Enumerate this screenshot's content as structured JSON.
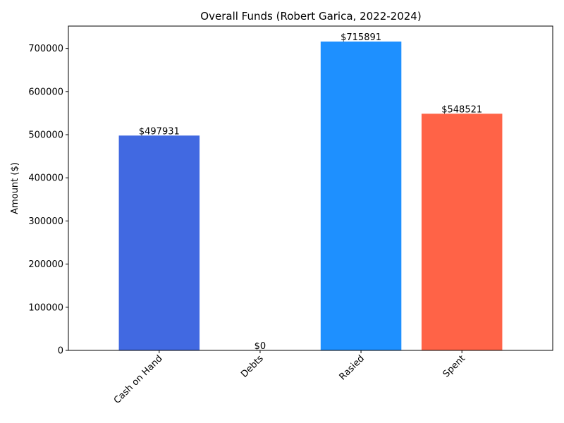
{
  "chart_data": {
    "type": "bar",
    "title": "Overall Funds (Robert Garica, 2022-2024)",
    "xlabel": "",
    "ylabel": "Amount ($)",
    "categories": [
      "Cash on Hand",
      "Debts",
      "Rasied",
      "Spent"
    ],
    "values": [
      497931,
      0,
      715891,
      548521
    ],
    "data_labels": [
      "$497931",
      "$0",
      "$715891",
      "$548521"
    ],
    "colors": [
      "#4169e1",
      "#808080",
      "#1e90ff",
      "#ff6347"
    ],
    "ylim": [
      0,
      751685
    ],
    "yticks": [
      0,
      100000,
      200000,
      300000,
      400000,
      500000,
      600000,
      700000
    ],
    "ytick_labels": [
      "0",
      "100000",
      "200000",
      "300000",
      "400000",
      "500000",
      "600000",
      "700000"
    ],
    "grid": false,
    "legend": "none"
  }
}
